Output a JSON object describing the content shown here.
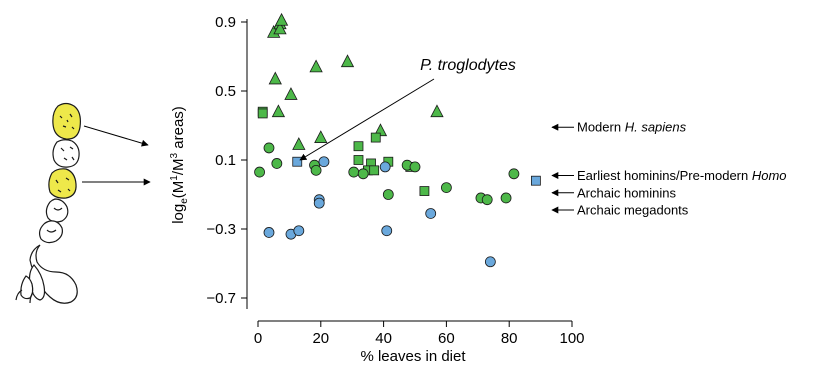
{
  "chart_data": {
    "type": "scatter",
    "xlabel": "% leaves in diet",
    "ylabel_parts": {
      "pre": "log",
      "sub": "e",
      "mid1": "(M",
      "sup1": "1",
      "mid2": "/M",
      "sup2": "3",
      "post": " areas)"
    },
    "xlim": [
      0,
      100
    ],
    "ylim": [
      -0.7,
      0.9
    ],
    "xticks": [
      0,
      20,
      40,
      60,
      80,
      100
    ],
    "yticks": [
      0.9,
      0.5,
      0.1,
      -0.3,
      -0.7
    ],
    "xtick_labels": [
      "0",
      "20",
      "40",
      "60",
      "80",
      "100"
    ],
    "ytick_labels": [
      "0.9",
      "0.5",
      "0.1",
      "−0.3",
      "−0.7"
    ],
    "colors": {
      "green": "#4db849",
      "blue": "#6aa8dc",
      "tooth_yellow": "#eee84a",
      "outline": "#1a1a1a"
    },
    "series": [
      {
        "marker": "triangle",
        "color": "green",
        "points": [
          [
            5,
            0.84
          ],
          [
            7,
            0.89
          ],
          [
            7,
            0.86
          ],
          [
            7.5,
            0.91
          ],
          [
            18.5,
            0.64
          ],
          [
            28.5,
            0.67
          ],
          [
            5.5,
            0.57
          ],
          [
            10.5,
            0.48
          ],
          [
            6.5,
            0.38
          ],
          [
            57,
            0.38
          ],
          [
            39,
            0.27
          ],
          [
            20,
            0.23
          ],
          [
            13,
            0.19
          ]
        ]
      },
      {
        "marker": "square",
        "color": "green",
        "points": [
          [
            1.5,
            0.38
          ],
          [
            1.5,
            0.37
          ],
          [
            37.5,
            0.23
          ],
          [
            32,
            0.18
          ],
          [
            32,
            0.1
          ],
          [
            41.5,
            0.09
          ],
          [
            36,
            0.08
          ],
          [
            48.5,
            0.06
          ],
          [
            35,
            0.04
          ],
          [
            37,
            0.04
          ],
          [
            53,
            -0.08
          ]
        ]
      },
      {
        "marker": "circle",
        "color": "green",
        "points": [
          [
            3.5,
            0.17
          ],
          [
            6,
            0.08
          ],
          [
            18,
            0.07
          ],
          [
            18.5,
            0.04
          ],
          [
            0.5,
            0.03
          ],
          [
            30.5,
            0.03
          ],
          [
            47.5,
            0.07
          ],
          [
            50,
            0.06
          ],
          [
            60,
            -0.06
          ],
          [
            81.5,
            0.02
          ],
          [
            33.5,
            0.02
          ],
          [
            41.5,
            -0.1
          ],
          [
            71,
            -0.12
          ],
          [
            73,
            -0.13
          ],
          [
            79,
            -0.12
          ]
        ]
      },
      {
        "marker": "square",
        "color": "blue",
        "points": [
          [
            12.5,
            0.09
          ],
          [
            88.5,
            -0.02
          ]
        ]
      },
      {
        "marker": "circle",
        "color": "blue",
        "points": [
          [
            21,
            0.09
          ],
          [
            40.5,
            0.06
          ],
          [
            19.5,
            -0.13
          ],
          [
            19.5,
            -0.15
          ],
          [
            55,
            -0.21
          ],
          [
            3.5,
            -0.32
          ],
          [
            10.5,
            -0.33
          ],
          [
            13,
            -0.31
          ],
          [
            41,
            -0.31
          ],
          [
            74,
            -0.49
          ]
        ]
      }
    ],
    "annotations": {
      "species_label": "P. troglodytes",
      "arrows": [
        {
          "label_pre": "Modern ",
          "label_italic": "H. sapiens",
          "y": 0.29
        },
        {
          "label_pre": "Earliest hominins/Pre-modern ",
          "label_italic": "Homo",
          "y": 0.01
        },
        {
          "label_pre": "Archaic hominins",
          "label_italic": "",
          "y": -0.09
        },
        {
          "label_pre": "Archaic megadonts",
          "label_italic": "",
          "y": -0.19
        }
      ]
    }
  }
}
